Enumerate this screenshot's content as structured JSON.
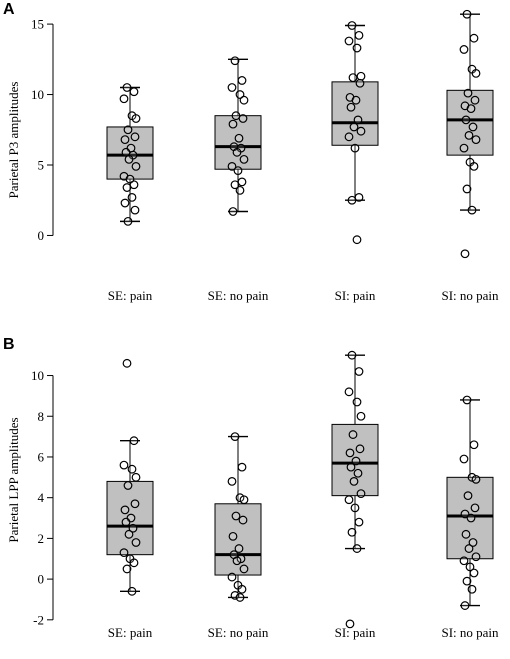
{
  "chart_data": [
    {
      "panel": "A",
      "type": "box",
      "ylabel": "Parietal P3 amplitudes",
      "ylim": [
        -1.6,
        16.0
      ],
      "yticks": [
        0,
        5,
        10,
        15
      ],
      "categories": [
        "SE: pain",
        "SE: no pain",
        "SI: pain",
        "SI: no pain"
      ],
      "boxes": [
        {
          "min": 1.0,
          "q1": 4.0,
          "median": 5.7,
          "q3": 7.7,
          "max": 10.5
        },
        {
          "min": 1.7,
          "q1": 4.7,
          "median": 6.3,
          "q3": 8.5,
          "max": 12.5
        },
        {
          "min": 2.5,
          "q1": 6.4,
          "median": 8.0,
          "q3": 10.9,
          "max": 14.9
        },
        {
          "min": 1.8,
          "q1": 5.7,
          "median": 8.2,
          "q3": 10.3,
          "max": 15.7
        }
      ],
      "points": [
        [
          10.5,
          10.2,
          9.7,
          8.5,
          8.3,
          7.5,
          7.0,
          6.8,
          6.2,
          5.9,
          5.7,
          5.4,
          4.9,
          4.2,
          4.0,
          3.6,
          3.4,
          2.7,
          2.3,
          1.8,
          1.0
        ],
        [
          12.4,
          11.0,
          10.5,
          10.0,
          9.6,
          8.5,
          8.3,
          7.9,
          6.9,
          6.3,
          6.2,
          5.9,
          5.4,
          4.9,
          4.6,
          3.8,
          3.6,
          3.2,
          1.7
        ],
        [
          14.9,
          14.2,
          13.8,
          13.3,
          11.3,
          11.2,
          10.8,
          9.8,
          9.6,
          9.1,
          8.2,
          7.7,
          7.4,
          7.0,
          6.2,
          2.7,
          2.5,
          -0.3
        ],
        [
          15.7,
          14.0,
          13.2,
          11.8,
          11.5,
          10.1,
          9.6,
          9.2,
          9.0,
          8.2,
          7.7,
          7.1,
          6.8,
          6.2,
          5.2,
          4.9,
          3.3,
          1.8,
          -1.3
        ]
      ]
    },
    {
      "panel": "B",
      "type": "box",
      "ylabel": "Parietal LPP amplitudes",
      "ylim": [
        -2.5,
        11.5
      ],
      "yticks": [
        -2,
        0,
        2,
        4,
        6,
        8,
        10
      ],
      "categories": [
        "SE: pain",
        "SE: no pain",
        "SI: pain",
        "SI: no pain"
      ],
      "boxes": [
        {
          "min": -0.6,
          "q1": 1.2,
          "median": 2.6,
          "q3": 4.8,
          "max": 6.8
        },
        {
          "min": -0.9,
          "q1": 0.2,
          "median": 1.2,
          "q3": 3.7,
          "max": 7.0
        },
        {
          "min": 1.5,
          "q1": 4.1,
          "median": 5.7,
          "q3": 7.6,
          "max": 11.0
        },
        {
          "min": -1.3,
          "q1": 1.0,
          "median": 3.1,
          "q3": 5.0,
          "max": 8.8
        }
      ],
      "points": [
        [
          10.6,
          6.8,
          5.6,
          5.4,
          5.0,
          4.6,
          3.7,
          3.4,
          3.0,
          2.8,
          2.5,
          2.2,
          1.8,
          1.3,
          1.0,
          0.8,
          0.5,
          -0.6
        ],
        [
          7.0,
          5.5,
          4.8,
          4.0,
          3.9,
          3.1,
          2.9,
          2.1,
          1.5,
          1.2,
          1.0,
          0.9,
          0.5,
          0.1,
          -0.3,
          -0.5,
          -0.8,
          -0.9
        ],
        [
          11.0,
          10.2,
          9.2,
          8.7,
          8.0,
          7.1,
          6.4,
          6.2,
          5.8,
          5.5,
          5.2,
          4.8,
          4.2,
          3.9,
          3.5,
          2.8,
          2.3,
          1.5,
          -2.2
        ],
        [
          8.8,
          6.6,
          5.9,
          5.0,
          4.9,
          4.1,
          3.5,
          3.2,
          3.0,
          2.2,
          1.8,
          1.5,
          1.1,
          0.9,
          0.6,
          0.3,
          -0.1,
          -0.5,
          -1.3
        ]
      ]
    }
  ],
  "style": {
    "box_fill": "#c0c0c0",
    "stroke": "#000000",
    "point_fill": "#ffffff"
  }
}
